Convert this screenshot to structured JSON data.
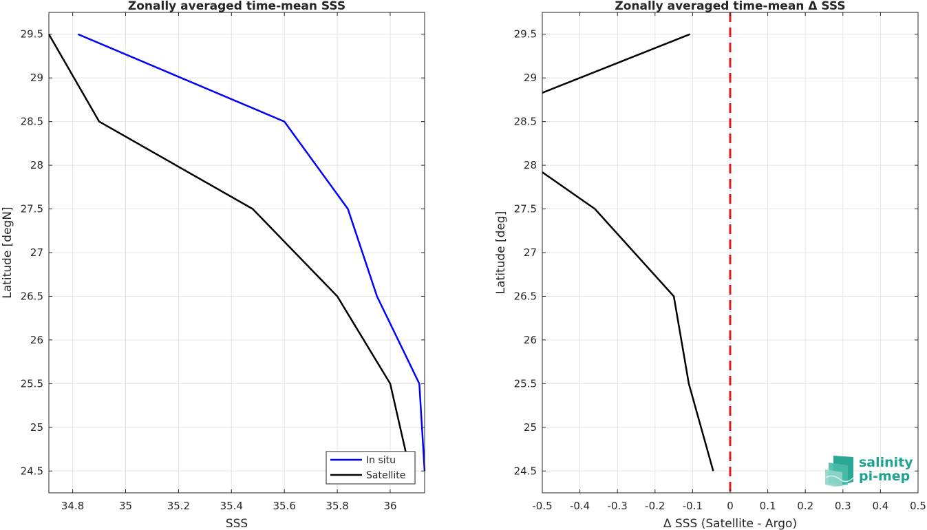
{
  "chart_data": [
    {
      "type": "line",
      "title": "Zonally averaged time-mean SSS",
      "xlabel": "SSS",
      "ylabel": "Latitude [degN]",
      "xlim": [
        34.71,
        36.13
      ],
      "ylim": [
        24.25,
        29.75
      ],
      "xticks": [
        "34.8",
        "35",
        "35.2",
        "35.4",
        "35.6",
        "35.8",
        "36"
      ],
      "yticks": [
        "24.5",
        "25",
        "25.5",
        "26",
        "26.5",
        "27",
        "27.5",
        "28",
        "28.5",
        "29",
        "29.5"
      ],
      "grid": true,
      "legend_position": "bottom-right",
      "series": [
        {
          "name": "In situ",
          "color": "#0000ff",
          "x": [
            36.13,
            36.11,
            35.95,
            35.84,
            35.6,
            34.82
          ],
          "y": [
            24.5,
            25.5,
            26.5,
            27.5,
            28.5,
            29.5
          ]
        },
        {
          "name": "Satellite",
          "color": "#000000",
          "x": [
            36.06,
            36.0,
            35.8,
            35.48,
            34.9,
            34.71
          ],
          "y": [
            24.7,
            25.5,
            26.5,
            27.5,
            28.5,
            29.5
          ]
        }
      ]
    },
    {
      "type": "line",
      "title": "Zonally averaged time-mean Δ SSS",
      "xlabel": "Δ SSS (Satellite - Argo)",
      "ylabel": "Latitude [deg]",
      "xlim": [
        -0.5,
        0.5
      ],
      "ylim": [
        24.25,
        29.75
      ],
      "xticks": [
        "-0.5",
        "-0.4",
        "-0.3",
        "-0.2",
        "-0.1",
        "0",
        "0.1",
        "0.2",
        "0.3",
        "0.4",
        "0.5"
      ],
      "yticks": [
        "24.5",
        "25",
        "25.5",
        "26",
        "26.5",
        "27",
        "27.5",
        "28",
        "28.5",
        "29",
        "29.5"
      ],
      "grid": true,
      "reference_line": {
        "x": 0,
        "color": "#e31a1c",
        "style": "dashed"
      },
      "series": [
        {
          "color": "#000000",
          "segments": [
            {
              "x": [
                -0.5,
                -0.107
              ],
              "y": [
                28.83,
                29.5
              ]
            },
            {
              "x": [
                -0.5,
                -0.36,
                -0.15,
                -0.11,
                -0.045
              ],
              "y": [
                27.92,
                27.5,
                26.5,
                25.5,
                24.5
              ]
            }
          ]
        }
      ]
    }
  ],
  "logo": {
    "line1": "salinity",
    "line2": "pi-mep",
    "color": "#1fa38f"
  }
}
